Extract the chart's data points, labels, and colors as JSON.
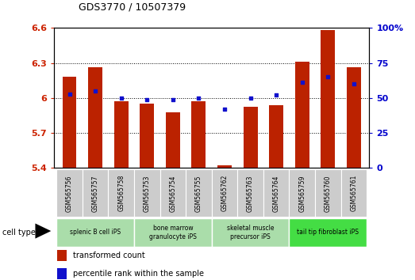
{
  "title": "GDS3770 / 10507379",
  "samples": [
    "GSM565756",
    "GSM565757",
    "GSM565758",
    "GSM565753",
    "GSM565754",
    "GSM565755",
    "GSM565762",
    "GSM565763",
    "GSM565764",
    "GSM565759",
    "GSM565760",
    "GSM565761"
  ],
  "bar_values": [
    6.18,
    6.265,
    5.975,
    5.955,
    5.875,
    5.975,
    5.42,
    5.925,
    5.94,
    6.31,
    6.585,
    6.265
  ],
  "dot_values": [
    53,
    55,
    50,
    49,
    49,
    50,
    42,
    50,
    52,
    61,
    65,
    60
  ],
  "ymin": 5.4,
  "ymax": 6.6,
  "y2min": 0,
  "y2max": 100,
  "yticks": [
    5.4,
    5.7,
    6.0,
    6.3,
    6.6
  ],
  "ytick_labels": [
    "5.4",
    "5.7",
    "6",
    "6.3",
    "6.6"
  ],
  "y2ticks": [
    0,
    25,
    50,
    75,
    100
  ],
  "y2tick_labels": [
    "0",
    "25",
    "50",
    "75",
    "100%"
  ],
  "bar_color": "#bb2200",
  "dot_color": "#1111cc",
  "groups": [
    {
      "label": "splenic B cell iPS",
      "start": 0,
      "end": 2,
      "color": "#aaddaa"
    },
    {
      "label": "bone marrow\ngranulocyte iPS",
      "start": 3,
      "end": 5,
      "color": "#aaddaa"
    },
    {
      "label": "skeletal muscle\nprecursor iPS",
      "start": 6,
      "end": 8,
      "color": "#aaddaa"
    },
    {
      "label": "tail tip fibroblast iPS",
      "start": 9,
      "end": 11,
      "color": "#44dd44"
    }
  ],
  "legend_bar_label": "transformed count",
  "legend_dot_label": "percentile rank within the sample",
  "bar_width": 0.55,
  "bg_color": "#ffffff",
  "tick_color_left": "#cc2200",
  "tick_color_right": "#0000cc",
  "sample_box_color": "#cccccc",
  "cell_type_label": "cell type"
}
